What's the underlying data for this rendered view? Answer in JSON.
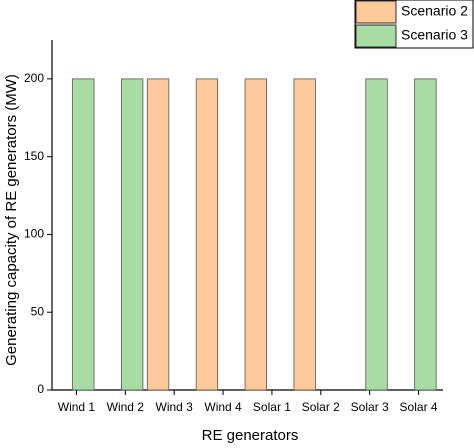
{
  "chart_data": {
    "type": "bar",
    "x_label": "RE generators",
    "y_label": "Generating capacity of RE generators (MW)",
    "categories": [
      "Wind 1",
      "Wind 2",
      "Wind 3",
      "Wind 4",
      "Solar 1",
      "Solar 2",
      "Solar 3",
      "Solar 4"
    ],
    "series": [
      {
        "name": "Scenario 2",
        "color": "#fdcb9b",
        "values": [
          null,
          null,
          200,
          200,
          200,
          200,
          null,
          null
        ]
      },
      {
        "name": "Scenario 3",
        "color": "#a9dca5",
        "values": [
          200,
          200,
          null,
          null,
          null,
          null,
          200,
          200
        ]
      }
    ],
    "ylim": [
      0,
      225
    ],
    "yticks": [
      0,
      50,
      100,
      150,
      200
    ],
    "legend": "top-right",
    "grid": false
  }
}
